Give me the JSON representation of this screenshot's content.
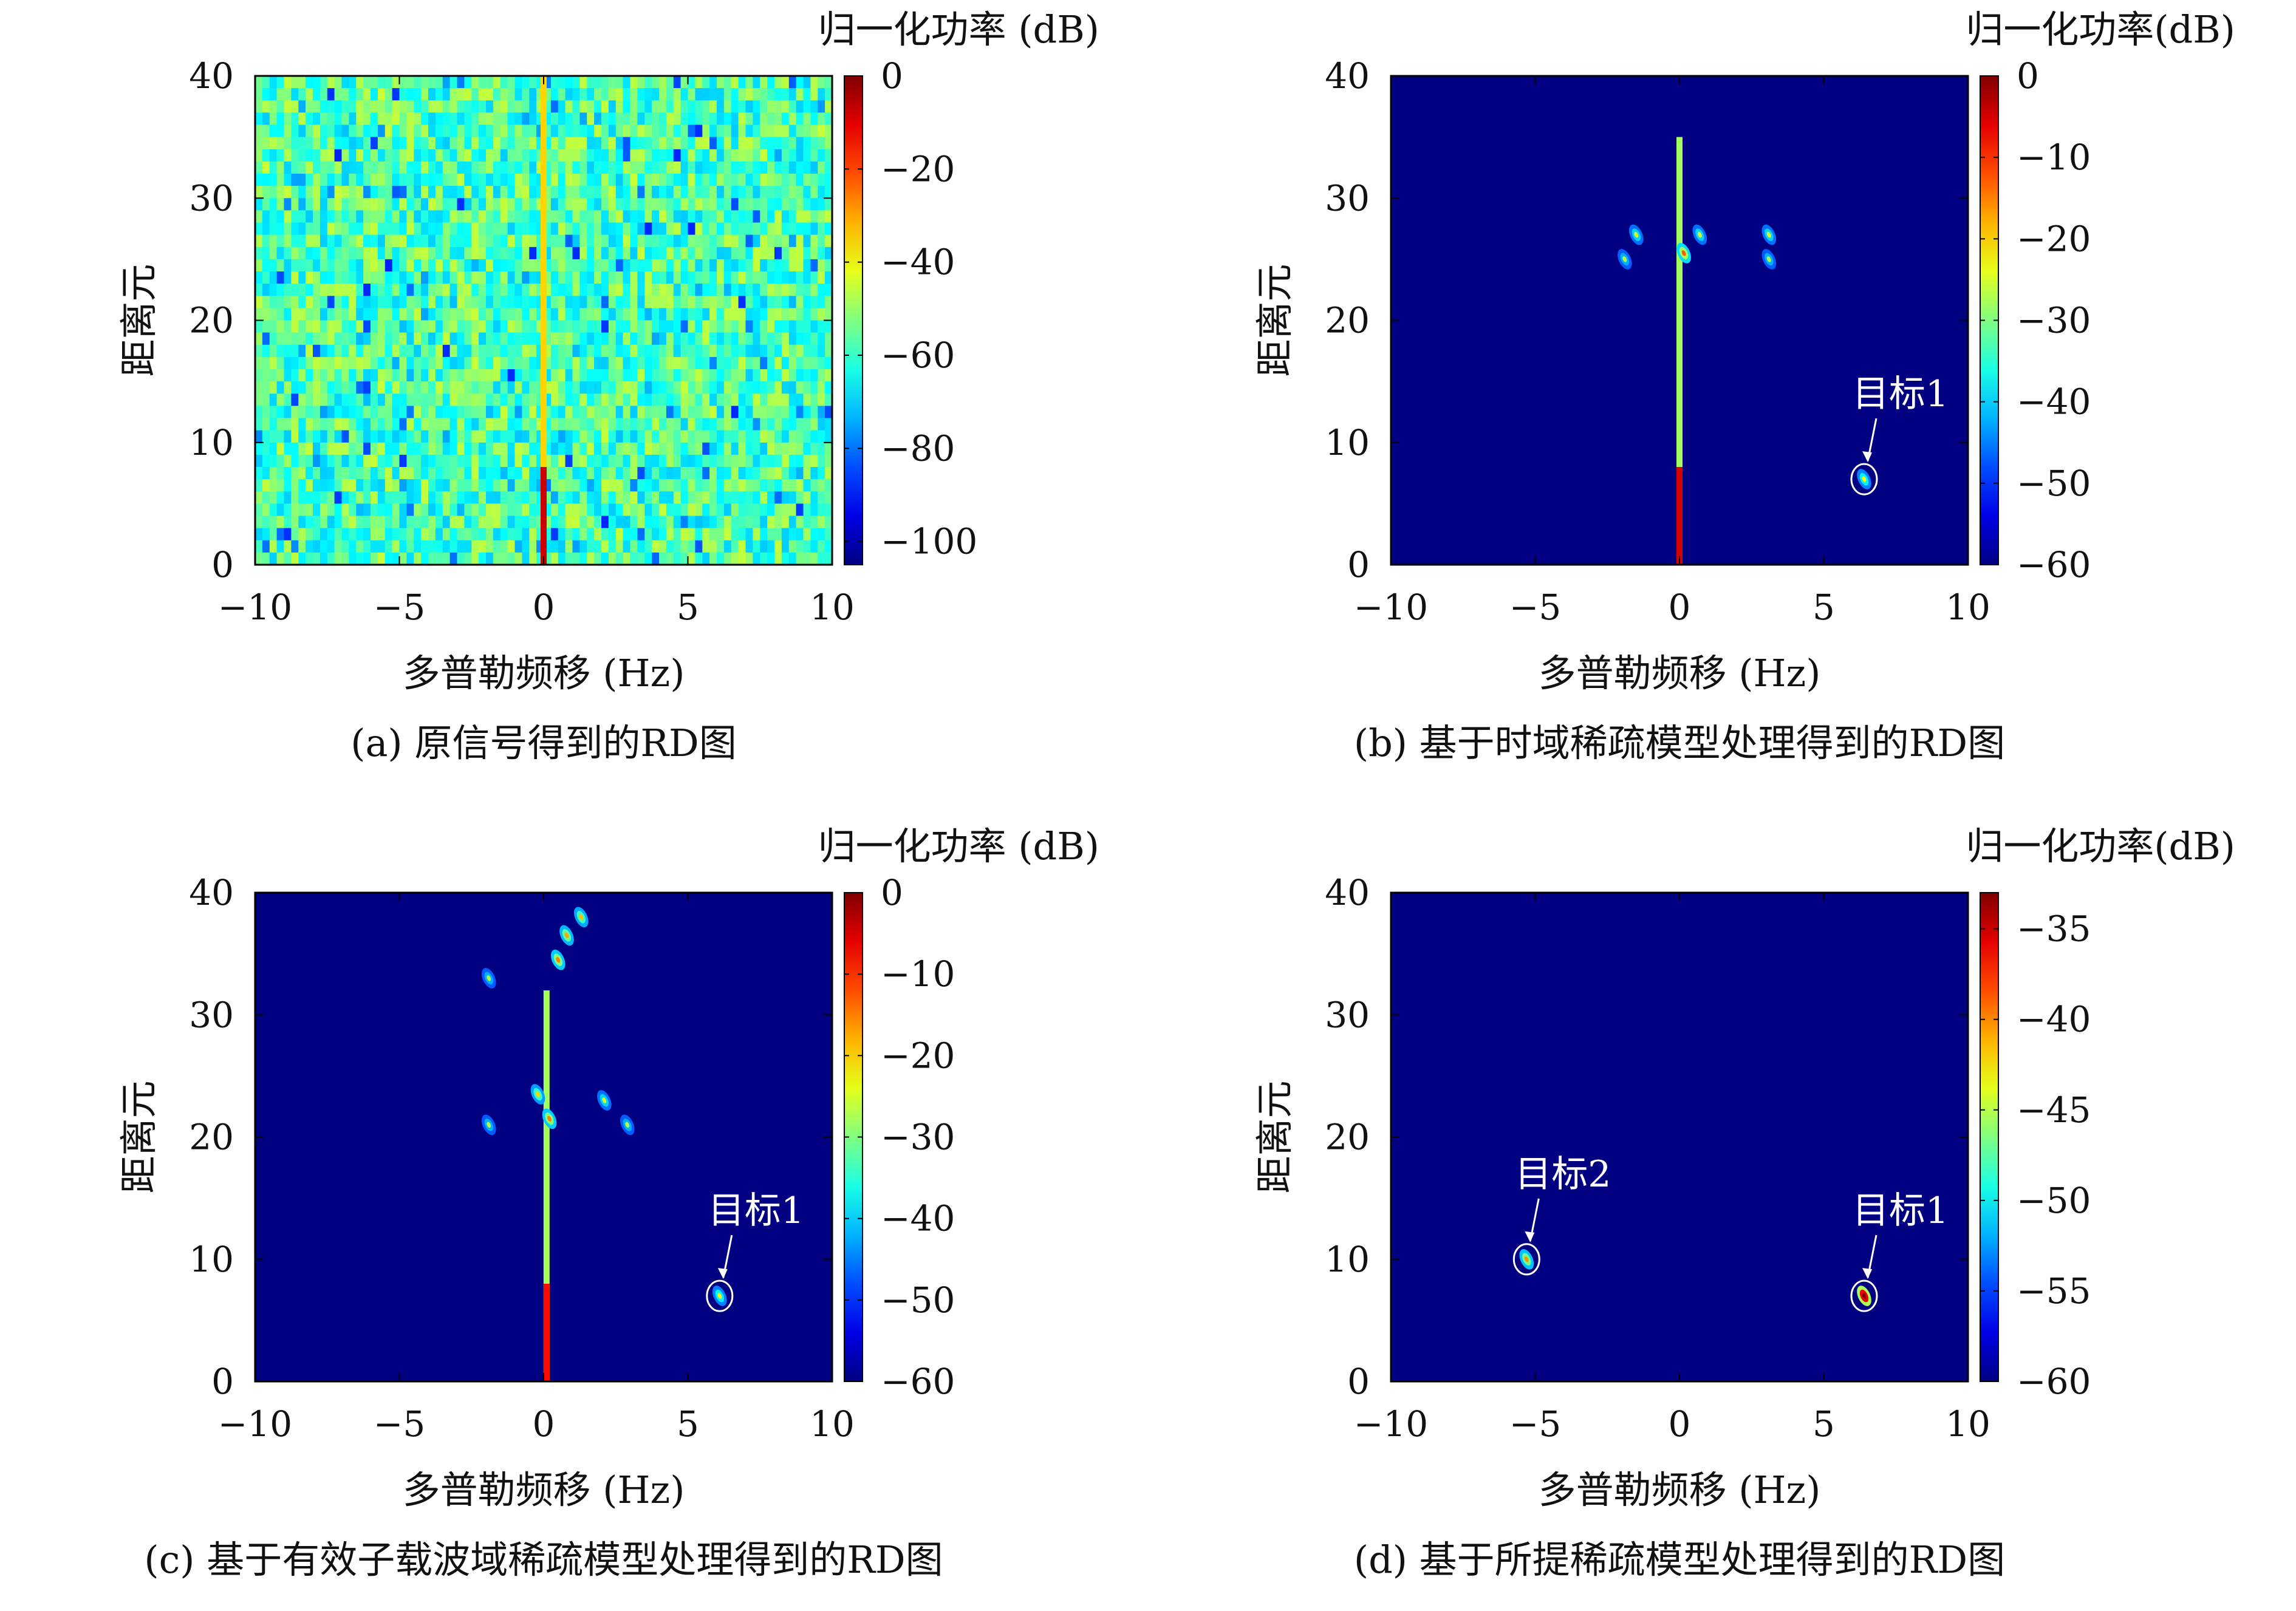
{
  "chart_data": [
    {
      "type": "heatmap",
      "caption": "(a) 原信号得到的RD图",
      "xlabel": "多普勒频移 (Hz)",
      "ylabel": "距离元",
      "xlim": [
        -10,
        10
      ],
      "ylim": [
        0,
        40
      ],
      "xticks": [
        -10,
        -5,
        0,
        5,
        10
      ],
      "yticks": [
        0,
        10,
        20,
        30,
        40
      ],
      "xtick_labels": [
        "−10",
        "−5",
        "0",
        "5",
        "10"
      ],
      "ytick_labels": [
        "0",
        "10",
        "20",
        "30",
        "40"
      ],
      "colorbar": {
        "title": "归一化功率 (dB)",
        "range": [
          -105,
          0
        ],
        "ticks": [
          0,
          -20,
          -40,
          -60,
          -80,
          -100
        ],
        "tick_labels": [
          "0",
          "−20",
          "−40",
          "−60",
          "−80",
          "−100"
        ]
      },
      "background": {
        "kind": "noise",
        "level": -58
      },
      "features": [
        {
          "kind": "vline",
          "x": 0.0,
          "y0": 0,
          "y1": 40,
          "value": -35
        },
        {
          "kind": "vline",
          "x": 0.0,
          "y0": 0,
          "y1": 8,
          "value": -8
        }
      ],
      "annotations": []
    },
    {
      "type": "heatmap",
      "caption": "(b) 基于时域稀疏模型处理得到的RD图",
      "xlabel": "多普勒频移 (Hz)",
      "ylabel": "距离元",
      "xlim": [
        -10,
        10
      ],
      "ylim": [
        0,
        40
      ],
      "xticks": [
        -10,
        -5,
        0,
        5,
        10
      ],
      "yticks": [
        0,
        10,
        20,
        30,
        40
      ],
      "xtick_labels": [
        "−10",
        "−5",
        "0",
        "5",
        "10"
      ],
      "ytick_labels": [
        "0",
        "10",
        "20",
        "30",
        "40"
      ],
      "colorbar": {
        "title": "归一化功率(dB)",
        "range": [
          -60,
          0
        ],
        "ticks": [
          0,
          -10,
          -20,
          -30,
          -40,
          -50,
          -60
        ],
        "tick_labels": [
          "0",
          "−10",
          "−20",
          "−30",
          "−40",
          "−50",
          "−60"
        ]
      },
      "background": {
        "kind": "flat",
        "level": -60
      },
      "features": [
        {
          "kind": "vline",
          "x": 0.0,
          "y0": 0,
          "y1": 35,
          "value": -28
        },
        {
          "kind": "vline",
          "x": 0.0,
          "y0": 0,
          "y1": 8,
          "value": -5
        },
        {
          "kind": "blob",
          "x": 0.15,
          "y": 25.5,
          "value": -28
        },
        {
          "kind": "blob",
          "x": -1.5,
          "y": 27.0,
          "value": -40
        },
        {
          "kind": "blob",
          "x": -1.9,
          "y": 25.0,
          "value": -42
        },
        {
          "kind": "blob",
          "x": 0.7,
          "y": 27.0,
          "value": -40
        },
        {
          "kind": "blob",
          "x": 3.1,
          "y": 27.0,
          "value": -40
        },
        {
          "kind": "blob",
          "x": 3.1,
          "y": 25.0,
          "value": -42
        },
        {
          "kind": "blob",
          "x": 6.4,
          "y": 7.0,
          "value": -38
        }
      ],
      "annotations": [
        {
          "text": "目标1",
          "x": 6.4,
          "y": 7.0
        }
      ]
    },
    {
      "type": "heatmap",
      "caption": "(c) 基于有效子载波域稀疏模型处理得到的RD图",
      "xlabel": "多普勒频移 (Hz)",
      "ylabel": "距离元",
      "xlim": [
        -10,
        10
      ],
      "ylim": [
        0,
        40
      ],
      "xticks": [
        -10,
        -5,
        0,
        5,
        10
      ],
      "yticks": [
        0,
        10,
        20,
        30,
        40
      ],
      "xtick_labels": [
        "−10",
        "−5",
        "0",
        "5",
        "10"
      ],
      "ytick_labels": [
        "0",
        "10",
        "20",
        "30",
        "40"
      ],
      "colorbar": {
        "title": "归一化功率 (dB)",
        "range": [
          -60,
          0
        ],
        "ticks": [
          0,
          -10,
          -20,
          -30,
          -40,
          -50,
          -60
        ],
        "tick_labels": [
          "0",
          "−10",
          "−20",
          "−30",
          "−40",
          "−50",
          "−60"
        ]
      },
      "background": {
        "kind": "flat",
        "level": -60
      },
      "features": [
        {
          "kind": "vline",
          "x": 0.1,
          "y0": 0,
          "y1": 32,
          "value": -28
        },
        {
          "kind": "vline",
          "x": 0.1,
          "y0": 0,
          "y1": 8,
          "value": -8
        },
        {
          "kind": "blob",
          "x": 0.5,
          "y": 34.5,
          "value": -30
        },
        {
          "kind": "blob",
          "x": 0.8,
          "y": 36.5,
          "value": -32
        },
        {
          "kind": "blob",
          "x": 1.3,
          "y": 38.0,
          "value": -34
        },
        {
          "kind": "blob",
          "x": -1.9,
          "y": 33.0,
          "value": -42
        },
        {
          "kind": "blob",
          "x": -0.2,
          "y": 23.5,
          "value": -35
        },
        {
          "kind": "blob",
          "x": 0.2,
          "y": 21.5,
          "value": -30
        },
        {
          "kind": "blob",
          "x": -1.9,
          "y": 21.0,
          "value": -42
        },
        {
          "kind": "blob",
          "x": 2.1,
          "y": 23.0,
          "value": -40
        },
        {
          "kind": "blob",
          "x": 2.9,
          "y": 21.0,
          "value": -42
        },
        {
          "kind": "blob",
          "x": 6.1,
          "y": 7.0,
          "value": -38
        }
      ],
      "annotations": [
        {
          "text": "目标1",
          "x": 6.1,
          "y": 7.0
        }
      ]
    },
    {
      "type": "heatmap",
      "caption": "(d) 基于所提稀疏模型处理得到的RD图",
      "xlabel": "多普勒频移 (Hz)",
      "ylabel": "距离元",
      "xlim": [
        -10,
        10
      ],
      "ylim": [
        0,
        40
      ],
      "xticks": [
        -10,
        -5,
        0,
        5,
        10
      ],
      "yticks": [
        0,
        10,
        20,
        30,
        40
      ],
      "xtick_labels": [
        "−10",
        "−5",
        "0",
        "5",
        "10"
      ],
      "ytick_labels": [
        "0",
        "10",
        "20",
        "30",
        "40"
      ],
      "colorbar": {
        "title": "归一化功率(dB)",
        "range": [
          -60,
          -33
        ],
        "ticks": [
          -35,
          -40,
          -45,
          -50,
          -55,
          -60
        ],
        "tick_labels": [
          "−35",
          "−40",
          "−45",
          "−50",
          "−55",
          "−60"
        ]
      },
      "background": {
        "kind": "flat",
        "level": -60
      },
      "features": [
        {
          "kind": "blob",
          "x": -5.3,
          "y": 10.0,
          "value": -47
        },
        {
          "kind": "blob",
          "x": 6.4,
          "y": 7.0,
          "value": -36
        }
      ],
      "annotations": [
        {
          "text": "目标2",
          "x": -5.3,
          "y": 10.0
        },
        {
          "text": "目标1",
          "x": 6.4,
          "y": 7.0
        }
      ]
    }
  ]
}
